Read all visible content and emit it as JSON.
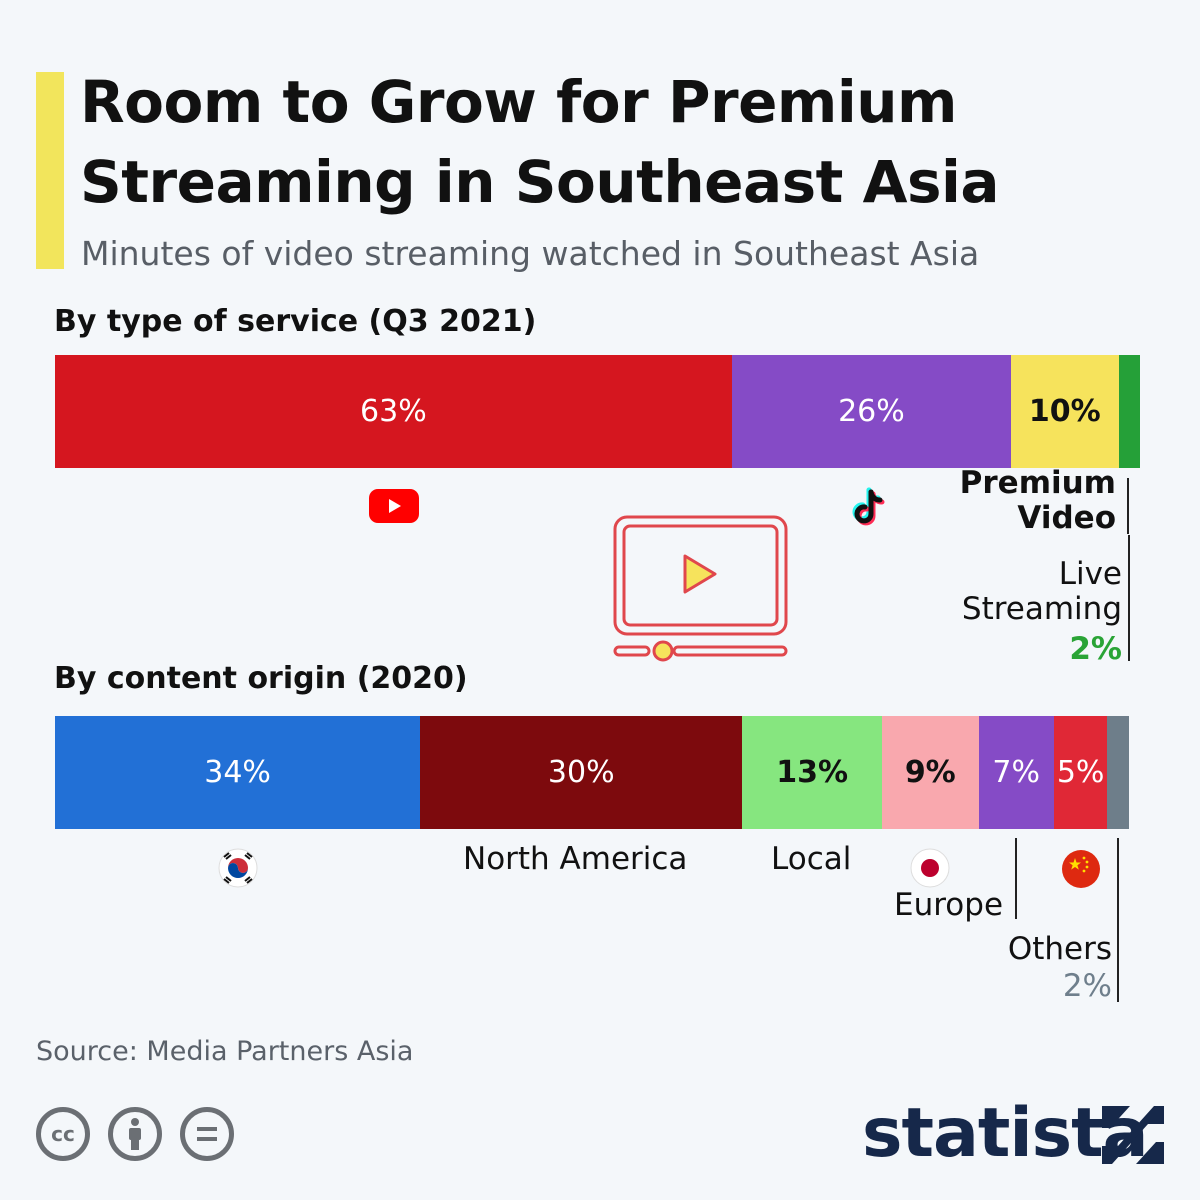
{
  "title": "Room to Grow for Premium\nStreaming in Southeast Asia",
  "subtitle": "Minutes of video streaming watched in Southeast Asia",
  "chart_data": [
    {
      "type": "bar",
      "title": "By type of service (Q3 2021)",
      "stacked": "horizontal-100%",
      "series": [
        {
          "name": "YouTube",
          "value": 63,
          "label": "63%",
          "color": "#d5161f",
          "text_color": "#ffffff",
          "icon": "youtube-icon"
        },
        {
          "name": "TikTok",
          "value": 26,
          "label": "26%",
          "color": "#854bc6",
          "text_color": "#ffffff",
          "icon": "tiktok-icon"
        },
        {
          "name": "Premium Video",
          "value": 10,
          "label": "10%",
          "color": "#f6e35c",
          "text_color": "#111111"
        },
        {
          "name": "Live Streaming",
          "value": 2,
          "label": "",
          "color": "#25a038",
          "text_color": "#ffffff"
        }
      ]
    },
    {
      "type": "bar",
      "title": "By content origin (2020)",
      "stacked": "horizontal-100%",
      "series": [
        {
          "name": "South Korea",
          "value": 34,
          "label": "34%",
          "color": "#2270d6",
          "text_color": "#ffffff",
          "icon": "south-korea-flag-icon"
        },
        {
          "name": "North America",
          "value": 30,
          "label": "30%",
          "color": "#7d0a0d",
          "text_color": "#ffffff"
        },
        {
          "name": "Local",
          "value": 13,
          "label": "13%",
          "color": "#86e67f",
          "text_color": "#111111"
        },
        {
          "name": "Japan",
          "value": 9,
          "label": "9%",
          "color": "#f9a8ae",
          "text_color": "#111111",
          "icon": "japan-flag-icon"
        },
        {
          "name": "Europe",
          "value": 7,
          "label": "7%",
          "color": "#854bc6",
          "text_color": "#ffffff"
        },
        {
          "name": "China",
          "value": 5,
          "label": "5%",
          "color": "#e02836",
          "text_color": "#ffffff",
          "icon": "china-flag-icon"
        },
        {
          "name": "Others",
          "value": 2,
          "label": "",
          "color": "#6e7e8a",
          "text_color": "#ffffff"
        }
      ]
    }
  ],
  "labels": {
    "premium_video": "Premium\nVideo",
    "live_streaming": "Live\nStreaming",
    "live_streaming_pct": "2%",
    "north_america": "North America",
    "local": "Local",
    "europe": "Europe",
    "others": "Others",
    "others_pct": "2%"
  },
  "source": "Source: Media Partners Asia",
  "brand": "statista",
  "license_icons": [
    "creative-commons-icon",
    "attribution-icon",
    "no-derivatives-icon"
  ]
}
